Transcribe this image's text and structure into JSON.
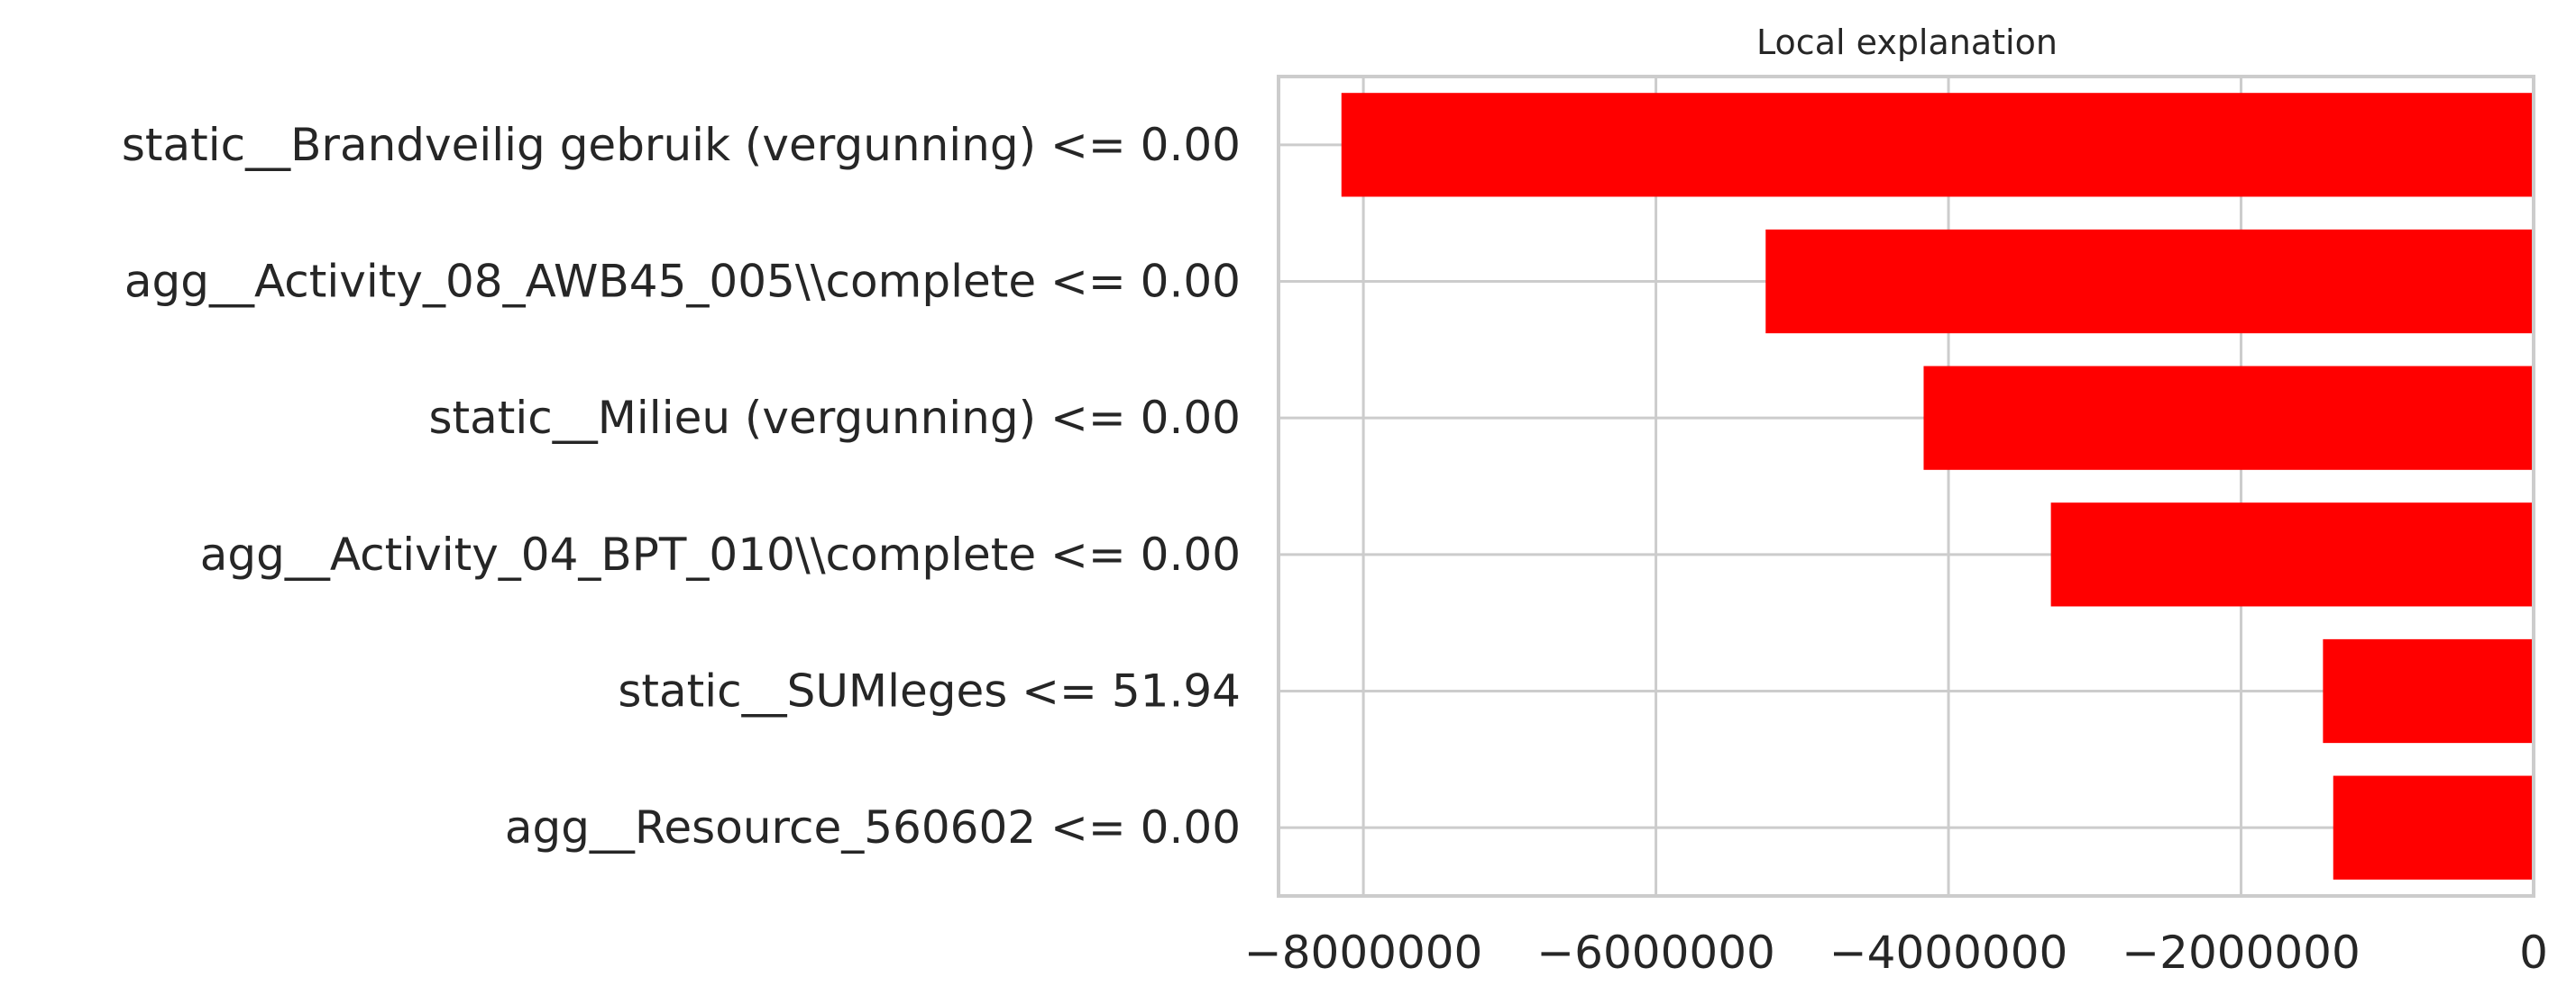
{
  "chart_data": {
    "type": "bar",
    "orientation": "horizontal",
    "title": "Local explanation",
    "xlabel": "",
    "ylabel": "",
    "categories": [
      "static__Brandveilig gebruik (vergunning) <= 0.00",
      "agg__Activity_08_AWB45_005\\\\complete <= 0.00",
      "static__Milieu (vergunning) <= 0.00",
      "agg__Activity_04_BPT_010\\\\complete <= 0.00",
      "static__SUMleges <= 51.94",
      "agg__Resource_560602 <= 0.00"
    ],
    "values": [
      -8150000,
      -5250000,
      -4170000,
      -3300000,
      -1440000,
      -1370000
    ],
    "xlim": [
      -8580000,
      0
    ],
    "xticks": [
      -8000000,
      -6000000,
      -4000000,
      -2000000,
      0
    ],
    "xtick_labels": [
      "−8000000",
      "−6000000",
      "−4000000",
      "−2000000",
      "0"
    ],
    "grid": true,
    "bar_color": "#ff0000",
    "grid_color": "#cccccc",
    "frame_color": "#cccccc"
  }
}
